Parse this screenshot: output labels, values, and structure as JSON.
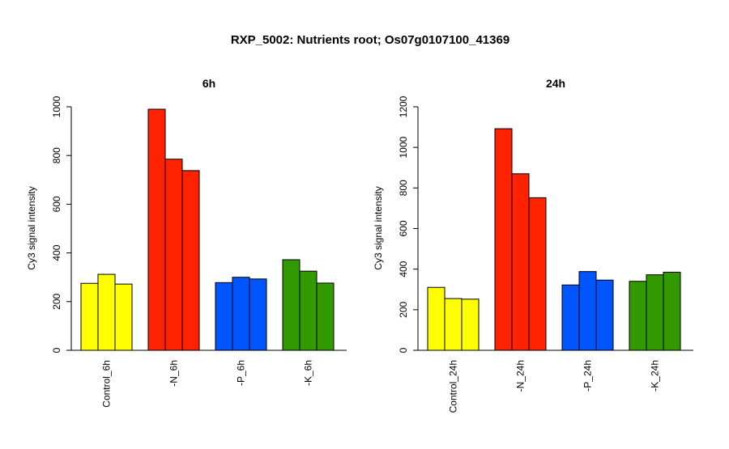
{
  "title": "RXP_5002: Nutrients root; Os07g0107100_41369",
  "chart_data": [
    {
      "type": "bar",
      "title": "6h",
      "ylabel": "Cy3 signal intensity",
      "xlabel": "",
      "ylim": [
        0,
        1000
      ],
      "yticks": [
        0,
        200,
        400,
        600,
        800,
        1000
      ],
      "groups": [
        {
          "label": "Control_6h",
          "color": "#ffff00",
          "values": [
            275,
            312,
            272
          ]
        },
        {
          "label": "-N_6h",
          "color": "#ff2200",
          "values": [
            990,
            785,
            738
          ]
        },
        {
          "label": "-P_6h",
          "color": "#0055ff",
          "values": [
            278,
            300,
            293
          ]
        },
        {
          "label": "-K_6h",
          "color": "#339900",
          "values": [
            372,
            325,
            276
          ]
        }
      ]
    },
    {
      "type": "bar",
      "title": "24h",
      "ylabel": "Cy3 signal intensity",
      "xlabel": "",
      "ylim": [
        0,
        1200
      ],
      "yticks": [
        0,
        200,
        400,
        600,
        800,
        1000,
        1200
      ],
      "groups": [
        {
          "label": "Control_24h",
          "color": "#ffff00",
          "values": [
            310,
            255,
            252
          ]
        },
        {
          "label": "-N_24h",
          "color": "#ff2200",
          "values": [
            1092,
            870,
            752
          ]
        },
        {
          "label": "-P_24h",
          "color": "#0055ff",
          "values": [
            322,
            388,
            346
          ]
        },
        {
          "label": "-K_24h",
          "color": "#339900",
          "values": [
            340,
            372,
            385
          ]
        }
      ]
    }
  ]
}
